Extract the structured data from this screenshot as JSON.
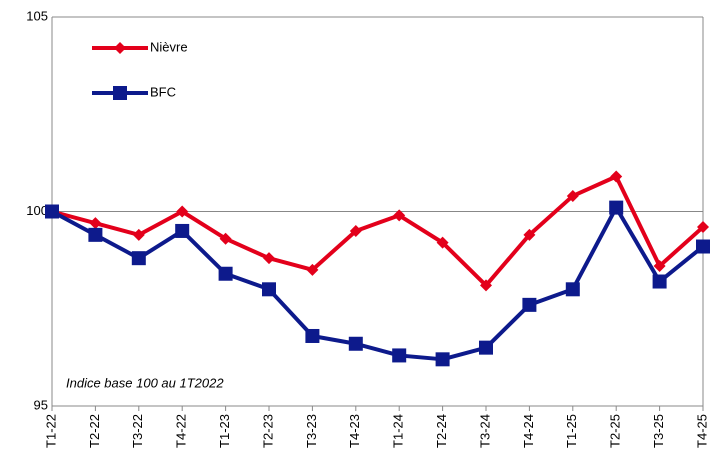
{
  "chart_data": {
    "type": "line",
    "annotation": "Indice base 100 au 1T2022",
    "categories": [
      "T1-22",
      "T2-22",
      "T3-22",
      "T4-22",
      "T1-23",
      "T2-23",
      "T3-23",
      "T4-23",
      "T1-24",
      "T2-24",
      "T3-24",
      "T4-24",
      "T1-25",
      "T2-25",
      "T3-25",
      "T4-25"
    ],
    "series": [
      {
        "name": "Nièvre",
        "color": "#e3001b",
        "marker": "diamond",
        "values": [
          100,
          99.7,
          99.4,
          100,
          99.3,
          98.8,
          98.5,
          99.5,
          99.9,
          99.2,
          98.1,
          99.4,
          100.4,
          100.9,
          98.6,
          99.6
        ]
      },
      {
        "name": "BFC",
        "color": "#0d1a8c",
        "marker": "square",
        "values": [
          100,
          99.4,
          98.8,
          99.5,
          98.4,
          98.0,
          96.8,
          96.6,
          96.3,
          96.2,
          96.5,
          97.6,
          98.0,
          100.1,
          98.2,
          99.1
        ]
      }
    ],
    "ylim": [
      95,
      105
    ],
    "yticks": [
      95,
      100,
      105
    ],
    "grid": true,
    "legend": "top-left"
  }
}
